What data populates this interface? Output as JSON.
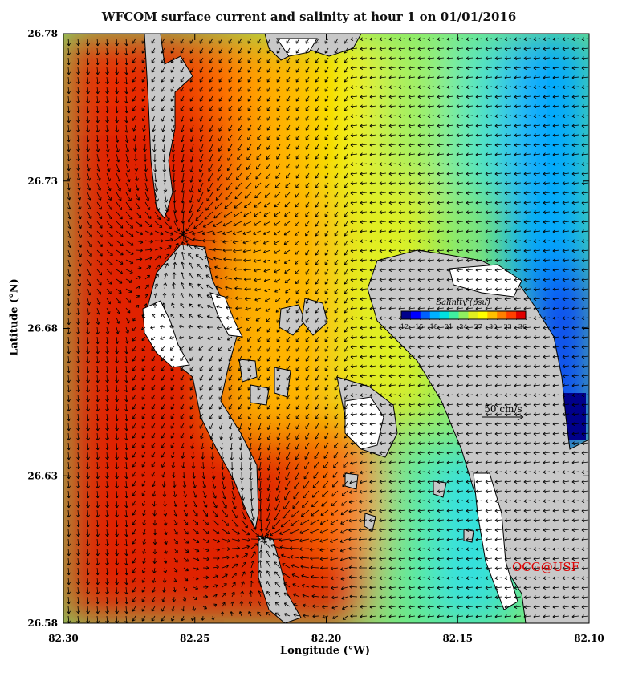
{
  "title": "WFCOM surface current and salinity at hour 1 on 01/01/2016",
  "watermark": "OCG@USF",
  "scale_label": "50 cm/s",
  "colorbar": {
    "title": "Salinity (psu)",
    "ticks": [
      "12",
      "15",
      "18",
      "21",
      "24",
      "27",
      "30",
      "33",
      "36"
    ],
    "colors": [
      "#00008b",
      "#0000ff",
      "#0060ff",
      "#00b0ff",
      "#00e0e0",
      "#40f0a0",
      "#90f060",
      "#e0f020",
      "#ffff00",
      "#ffc000",
      "#ff8000",
      "#ff4000",
      "#e00000"
    ]
  },
  "chart_data": {
    "type": "heatmap",
    "title": "WFCOM surface current and salinity at hour 1 on 01/01/2016",
    "xlabel": "Longitude (°W)",
    "ylabel": "Latitude (°N)",
    "xlim": [
      82.3,
      82.1
    ],
    "ylim": [
      26.58,
      26.78
    ],
    "x_ticks": [
      "82.30",
      "82.25",
      "82.20",
      "82.15",
      "82.10"
    ],
    "y_ticks": [
      "26.58",
      "26.63",
      "26.68",
      "26.73",
      "26.78"
    ],
    "colorbar_label": "Salinity (psu)",
    "colorbar_range": [
      12,
      36
    ],
    "vector_scale": "50 cm/s"
  }
}
